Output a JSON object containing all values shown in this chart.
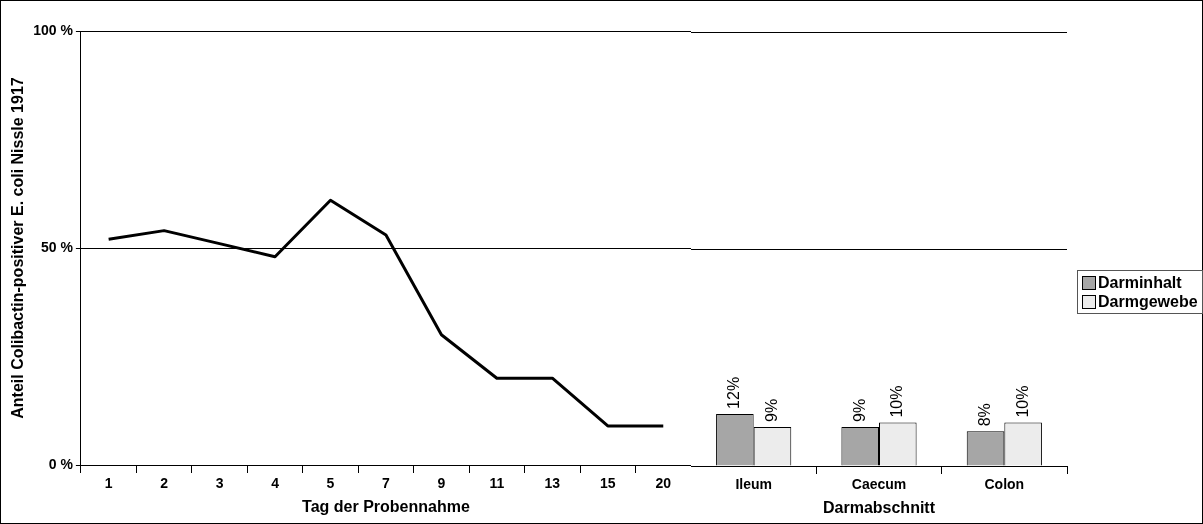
{
  "chart_data": [
    {
      "type": "line",
      "xlabel": "Tag der Probennahme",
      "ylabel": "Anteil Colibactin-positiver E. coli Nissle 1917",
      "categories": [
        "1",
        "2",
        "3",
        "4",
        "5",
        "7",
        "9",
        "11",
        "13",
        "15",
        "20"
      ],
      "series": [
        {
          "color": "#000000",
          "values": [
            52,
            54,
            51,
            48,
            61,
            53,
            30,
            20,
            20,
            9,
            9
          ]
        }
      ],
      "ylim": [
        0,
        100
      ],
      "yticks": [
        {
          "value": 0,
          "label": "0 %"
        },
        {
          "value": 50,
          "label": "50 %"
        },
        {
          "value": 100,
          "label": "100 %"
        }
      ],
      "grid": "y",
      "marker": "none"
    },
    {
      "type": "bar",
      "xlabel": "Darmabschnitt",
      "categories": [
        "Ileum",
        "Caecum",
        "Colon"
      ],
      "series": [
        {
          "name": "Darminhalt",
          "color": "#a6a6a6",
          "values": [
            12,
            9,
            8
          ],
          "value_labels": [
            "12%",
            "9%",
            "8%"
          ]
        },
        {
          "name": "Darmgewebe",
          "color": "#ececec",
          "values": [
            9,
            10,
            10
          ],
          "value_labels": [
            "9%",
            "10%",
            "10%"
          ]
        }
      ],
      "ylim": [
        0,
        100
      ],
      "yticks": [
        0,
        50,
        100
      ],
      "grid": "y",
      "tick_labels": "x",
      "legend": "right"
    }
  ]
}
